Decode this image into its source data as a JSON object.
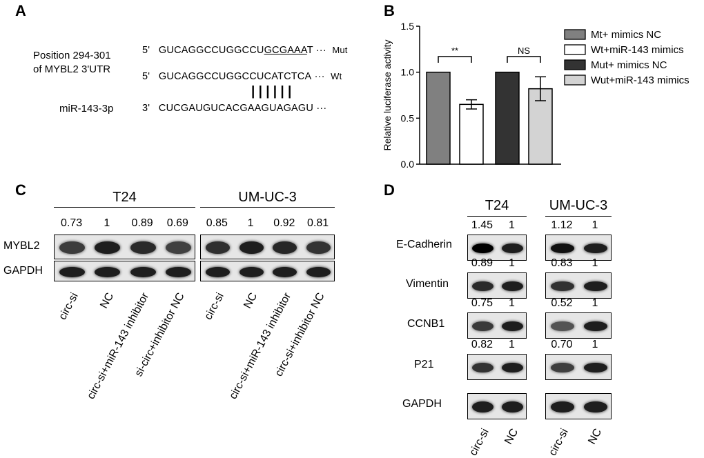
{
  "panels": {
    "A": "A",
    "B": "B",
    "C": "C",
    "D": "D"
  },
  "panelA": {
    "position_line1": "Position  294-301",
    "position_line2": "of MYBL2 3'UTR",
    "mirna_label": "miR-143-3p",
    "rows": [
      {
        "prime": "5'",
        "seq_plain": "GUCAGGCCUGGCCU",
        "seq_underlined": "GCGAAA",
        "seq_tail": "T ···",
        "tag": "Mut"
      },
      {
        "prime": "5'",
        "seq_plain": "GUCAGGCCUGGCCUCATCTCA",
        "seq_underlined": "",
        "seq_tail": "···",
        "tag": "Wt"
      },
      {
        "prime": "3'",
        "seq_plain": "CUCGAUGUCACGAAGUAGAGU",
        "seq_underlined": "",
        "seq_tail": "···",
        "tag": ""
      }
    ],
    "pairing_bars": "| | | | | |"
  },
  "chart_data": {
    "type": "bar",
    "ylabel": "Relative luciferase activity",
    "ylim": [
      0,
      1.5
    ],
    "yticks": [
      "0.0",
      "0.5",
      "1.0",
      "1.5"
    ],
    "categories": [
      "Mt+ mimics NC",
      "Wt+miR-143 mimics",
      "Mut+ mimics NC",
      "Wut+miR-143 mimics"
    ],
    "values": [
      1.0,
      0.65,
      1.0,
      0.82
    ],
    "errors": [
      0,
      0.05,
      0,
      0.13
    ],
    "colors": [
      "#808080",
      "#ffffff",
      "#333333",
      "#d3d3d3"
    ],
    "significance": [
      {
        "pair": [
          0,
          1
        ],
        "label": "**"
      },
      {
        "pair": [
          2,
          3
        ],
        "label": "NS"
      }
    ],
    "legend_position": "right"
  },
  "panelC": {
    "groups": [
      {
        "title": "T24",
        "quant": [
          "0.73",
          "1",
          "0.89",
          "0.69"
        ]
      },
      {
        "title": "UM-UC-3",
        "quant": [
          "0.85",
          "1",
          "0.92",
          "0.81"
        ]
      }
    ],
    "rows": [
      "MYBL2",
      "GAPDH"
    ],
    "lanes_left": [
      "circ-si",
      "NC",
      "circ-si+miR-143 inhibitor",
      "si-circ+inhibitor  NC"
    ],
    "lanes_right": [
      "circ-si",
      "NC",
      "circ-si+miR-143 inhibitor",
      "circ-si+inhibitor  NC"
    ]
  },
  "panelD": {
    "groups": [
      "T24",
      "UM-UC-3"
    ],
    "rows": [
      "E-Cadherin",
      "Vimentin",
      "CCNB1",
      "P21",
      "GAPDH"
    ],
    "quant_left": [
      [
        "1.45",
        "1"
      ],
      [
        "0.89",
        "1"
      ],
      [
        "0.75",
        "1"
      ],
      [
        "0.82",
        "1"
      ]
    ],
    "quant_right": [
      [
        "1.12",
        "1"
      ],
      [
        "0.83",
        "1"
      ],
      [
        "0.52",
        "1"
      ],
      [
        "0.70",
        "1"
      ]
    ],
    "lanes": [
      "circ-si",
      "NC"
    ]
  }
}
